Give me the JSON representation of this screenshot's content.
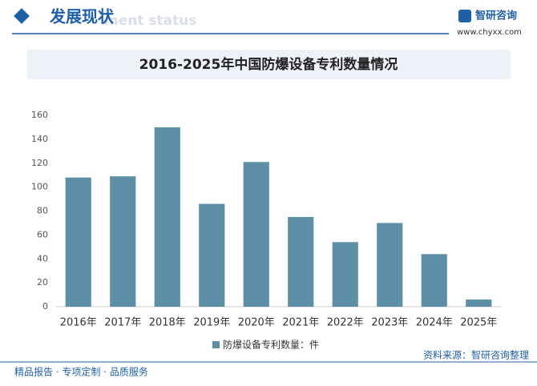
{
  "header": {
    "section": "发展现状",
    "section_en": "ment status",
    "brand": "智研咨询",
    "url": "www.chyxx.com"
  },
  "chart_data": {
    "type": "bar",
    "title": "2016-2025年中国防爆设备专利数量情况",
    "categories": [
      "2016年",
      "2017年",
      "2018年",
      "2019年",
      "2020年",
      "2021年",
      "2022年",
      "2023年",
      "2024年",
      "2025年"
    ],
    "series": [
      {
        "name": "防爆设备专利数量：件",
        "color": "#5d8fa6",
        "values": [
          108,
          109,
          150,
          86,
          121,
          75,
          54,
          70,
          44,
          6
        ]
      }
    ],
    "ylim": [
      0,
      160
    ],
    "yticks": [
      0,
      20,
      40,
      60,
      80,
      100,
      120,
      140,
      160
    ],
    "grid": false,
    "legend": "bottom"
  },
  "footer": {
    "left": "精品报告 · 专项定制 · 品质服务",
    "right": "资料来源：智研咨询整理"
  }
}
